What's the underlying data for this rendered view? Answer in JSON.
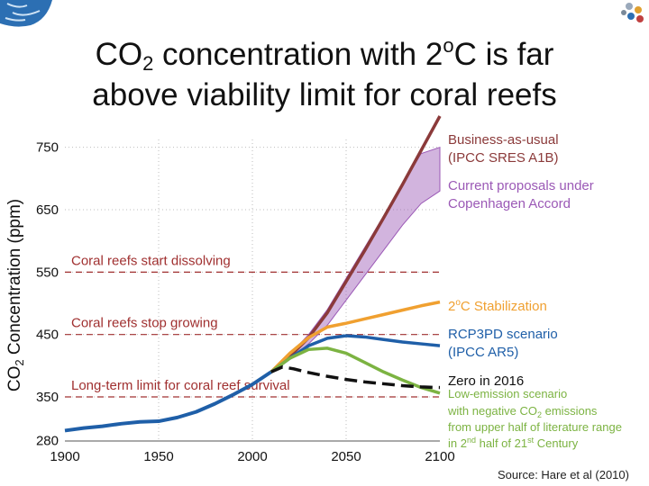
{
  "slide": {
    "title_pre": "CO",
    "title_sub": "2",
    "title_mid": " concentration with 2",
    "title_sup": "o",
    "title_post": "C is far",
    "title_line2": "above viability limit for coral reefs",
    "source": "Source: Hare et al (2010)"
  },
  "colors": {
    "bau": "#8b3a3a",
    "copenhagen": "#9b59b6",
    "stab2c": "#f0a030",
    "rcp3pd": "#1f5fa8",
    "lowemission": "#7cb342",
    "zero2016": "#111111",
    "history": "#1f5fa8",
    "threshold": "#a03030",
    "grid": "#bdbdbd"
  },
  "chart_data": {
    "type": "line",
    "ylabel_pre": "CO",
    "ylabel_sub": "2",
    "ylabel_post": " Concentration (ppm)",
    "xlim": [
      1900,
      2100
    ],
    "ylim": [
      280,
      760
    ],
    "x_ticks": [
      "1900",
      "1950",
      "2000",
      "2050",
      "2100"
    ],
    "y_ticks": [
      "280",
      "350",
      "450",
      "550",
      "650",
      "750"
    ],
    "thresholds": [
      {
        "value": 550,
        "label": "Coral reefs start dissolving"
      },
      {
        "value": 450,
        "label": "Coral reefs stop growing"
      },
      {
        "value": 350,
        "label": "Long-term limit for coral reef survival"
      }
    ],
    "history": {
      "x": [
        1900,
        1910,
        1920,
        1930,
        1940,
        1950,
        1960,
        1970,
        1980,
        1990,
        2000,
        2010
      ],
      "y": [
        296,
        300,
        303,
        307,
        310,
        311,
        317,
        326,
        339,
        354,
        370,
        390
      ]
    },
    "series": [
      {
        "key": "bau",
        "x": [
          2010,
          2020,
          2030,
          2040,
          2050,
          2060,
          2070,
          2080,
          2090,
          2100
        ],
        "y": [
          390,
          415,
          445,
          485,
          535,
          585,
          637,
          690,
          745,
          800
        ]
      },
      {
        "key": "stab2c",
        "x": [
          2010,
          2020,
          2030,
          2040,
          2050,
          2060,
          2070,
          2080,
          2090,
          2100
        ],
        "y": [
          390,
          420,
          445,
          462,
          468,
          475,
          482,
          489,
          496,
          502
        ]
      },
      {
        "key": "rcp3pd",
        "x": [
          2010,
          2020,
          2030,
          2040,
          2050,
          2060,
          2070,
          2080,
          2090,
          2100
        ],
        "y": [
          390,
          412,
          432,
          444,
          448,
          446,
          442,
          438,
          435,
          432
        ]
      },
      {
        "key": "lowemission",
        "x": [
          2010,
          2020,
          2030,
          2040,
          2050,
          2060,
          2070,
          2080,
          2090,
          2100
        ],
        "y": [
          390,
          412,
          426,
          428,
          420,
          405,
          390,
          377,
          365,
          356
        ]
      },
      {
        "key": "zero2016",
        "x": [
          2010,
          2016,
          2022,
          2030,
          2040,
          2050,
          2060,
          2070,
          2080,
          2090,
          2100
        ],
        "y": [
          390,
          398,
          395,
          389,
          383,
          378,
          374,
          371,
          368,
          366,
          365
        ]
      }
    ],
    "band": {
      "key": "copenhagen",
      "x": [
        2010,
        2020,
        2030,
        2040,
        2050,
        2060,
        2070,
        2080,
        2090,
        2100
      ],
      "upper": [
        390,
        418,
        450,
        490,
        540,
        590,
        640,
        690,
        740,
        750
      ],
      "lower": [
        390,
        410,
        435,
        465,
        505,
        545,
        585,
        625,
        660,
        680
      ]
    },
    "labels": {
      "bau": [
        "Business-as-usual",
        "(IPCC SRES A1B)"
      ],
      "copenhagen": [
        "Current proposals under",
        "Copenhagen Accord"
      ],
      "stab2c": {
        "pre": "2",
        "sup": "o",
        "post": "C Stabilization"
      },
      "rcp3pd": [
        "RCP3PD scenario",
        "(IPCC AR5)"
      ],
      "zero2016": "Zero in 2016",
      "lowemission": {
        "line1": "Low-emission scenario",
        "line2_pre": "with negative CO",
        "line2_sub": "2",
        "line2_post": " emissions",
        "line3": "from upper half of literature range",
        "line4_pre": "in 2",
        "line4_sup1": "nd",
        "line4_mid": " half of 21",
        "line4_sup2": "st",
        "line4_post": " Century"
      }
    }
  }
}
